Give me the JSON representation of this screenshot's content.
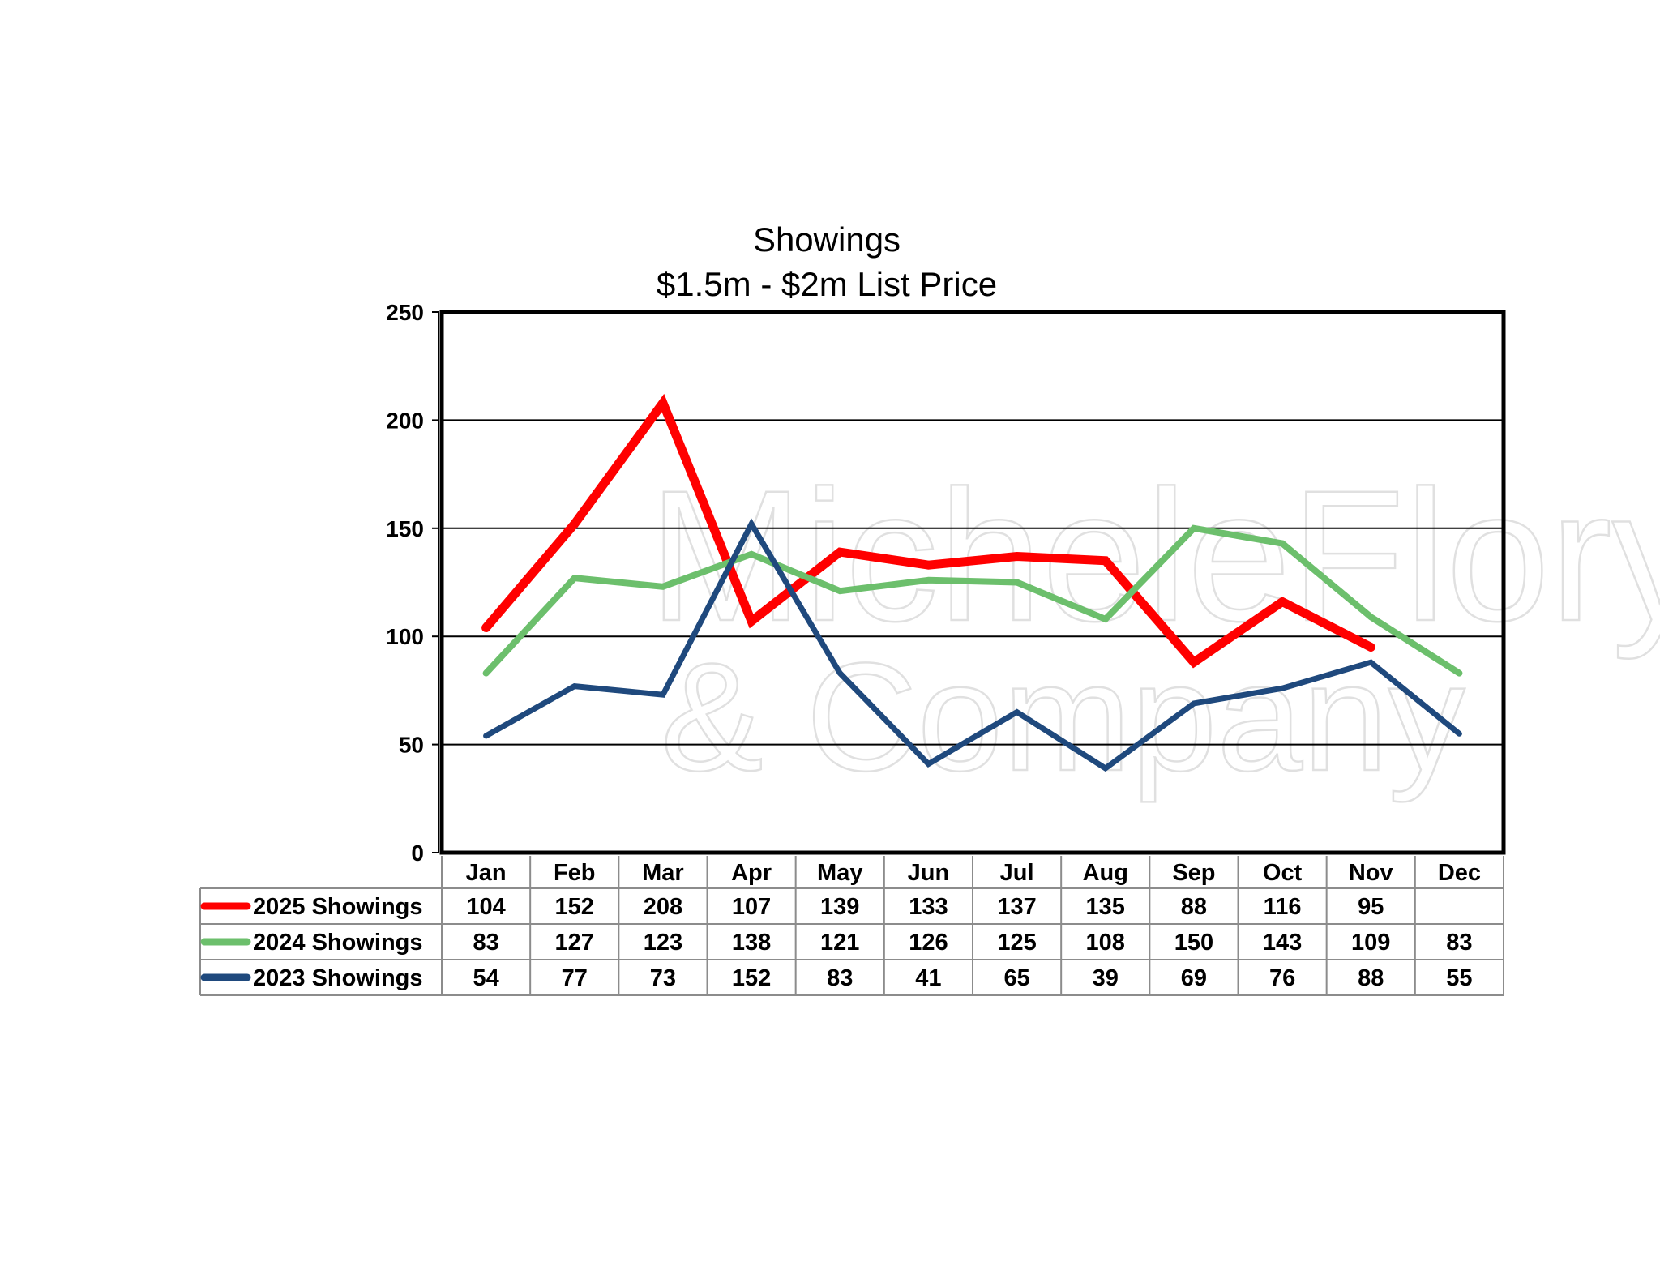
{
  "chart_data": {
    "type": "line",
    "title": "Showings",
    "subtitle": "$1.5m - $2m List Price",
    "categories": [
      "Jan",
      "Feb",
      "Mar",
      "Apr",
      "May",
      "Jun",
      "Jul",
      "Aug",
      "Sep",
      "Oct",
      "Nov",
      "Dec"
    ],
    "series": [
      {
        "name": "2025 Showings",
        "color": "#ff0000",
        "values": [
          104,
          152,
          208,
          107,
          139,
          133,
          137,
          135,
          88,
          116,
          95,
          null
        ]
      },
      {
        "name": "2024 Showings",
        "color": "#6cbf6c",
        "values": [
          83,
          127,
          123,
          138,
          121,
          126,
          125,
          108,
          150,
          143,
          109,
          83
        ]
      },
      {
        "name": "2023 Showings",
        "color": "#1f497d",
        "values": [
          54,
          77,
          73,
          152,
          83,
          41,
          65,
          39,
          69,
          76,
          88,
          55
        ]
      }
    ],
    "ylim": [
      0,
      250
    ],
    "yticks": [
      0,
      50,
      100,
      150,
      200,
      250
    ],
    "grid": true,
    "legend": "data-table-below",
    "watermark": {
      "line1": "MicheleFlory",
      "line2": "& Company"
    }
  }
}
